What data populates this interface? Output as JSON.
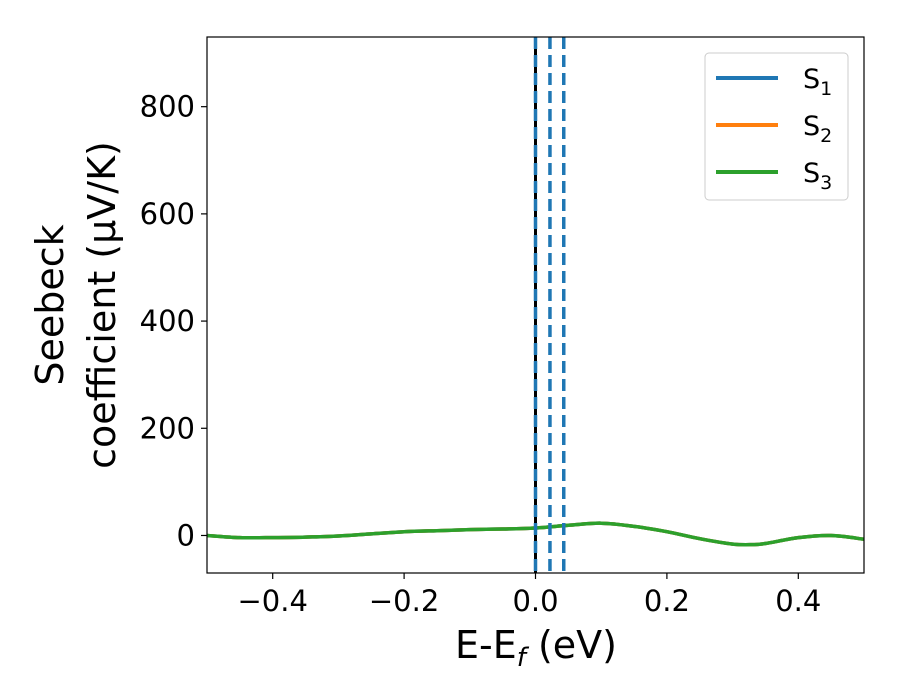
{
  "chart_data": {
    "type": "line",
    "xlabel": {
      "main": "E-E",
      "sub": "f",
      "unit": " (eV)"
    },
    "ylabel": {
      "line1": "Seebeck",
      "line2": "coefficient  (μV/K)"
    },
    "xlim": [
      -0.5,
      0.5
    ],
    "ylim": [
      -70,
      930
    ],
    "xticks": [
      -0.4,
      -0.2,
      0.0,
      0.2,
      0.4
    ],
    "xtick_labels": [
      "−0.4",
      "−0.2",
      "0.0",
      "0.2",
      "0.4"
    ],
    "yticks": [
      0,
      200,
      400,
      600,
      800
    ],
    "ytick_labels": [
      "0",
      "200",
      "400",
      "600",
      "800"
    ],
    "grid": false,
    "legend_position": "top-right",
    "legend": [
      {
        "main": "S",
        "sub": "1",
        "color": "#1f77b4"
      },
      {
        "main": "S",
        "sub": "2",
        "color": "#ff7f0e"
      },
      {
        "main": "S",
        "sub": "3",
        "color": "#2ca02c"
      }
    ],
    "vertical_lines": [
      {
        "x": 0.0,
        "color": "#000000",
        "style": "solid"
      },
      {
        "x": 0.0,
        "color": "#1f77b4",
        "style": "dashed"
      },
      {
        "x": 0.022,
        "color": "#1f77b4",
        "style": "dashed"
      },
      {
        "x": 0.043,
        "color": "#1f77b4",
        "style": "dashed"
      }
    ],
    "series": [
      {
        "name": "S1",
        "color": "#1f77b4",
        "x": [
          -0.5,
          -0.45,
          -0.4,
          -0.35,
          -0.3,
          -0.25,
          -0.2,
          -0.15,
          -0.1,
          -0.05,
          0.0,
          0.05,
          0.1,
          0.15,
          0.2,
          0.25,
          0.3,
          0.33,
          0.35,
          0.4,
          0.45,
          0.5
        ],
        "y": [
          0,
          -4,
          -4,
          -3,
          -1,
          3,
          7,
          9,
          11,
          12,
          14,
          19,
          23,
          17,
          7,
          -6,
          -16,
          -17,
          -15,
          -4,
          0,
          -7
        ]
      },
      {
        "name": "S2",
        "color": "#ff7f0e",
        "x": [
          -0.5,
          -0.45,
          -0.4,
          -0.35,
          -0.3,
          -0.25,
          -0.2,
          -0.15,
          -0.1,
          -0.05,
          0.0,
          0.05,
          0.1,
          0.15,
          0.2,
          0.25,
          0.3,
          0.33,
          0.35,
          0.4,
          0.45,
          0.5
        ],
        "y": [
          0,
          -4,
          -4,
          -3,
          -1,
          3,
          7,
          9,
          11,
          12,
          14,
          19,
          23,
          17,
          7,
          -6,
          -16,
          -17,
          -15,
          -4,
          0,
          -7
        ]
      },
      {
        "name": "S3",
        "color": "#2ca02c",
        "x": [
          -0.5,
          -0.45,
          -0.4,
          -0.35,
          -0.3,
          -0.25,
          -0.2,
          -0.15,
          -0.1,
          -0.05,
          0.0,
          0.05,
          0.1,
          0.15,
          0.2,
          0.25,
          0.3,
          0.33,
          0.35,
          0.4,
          0.45,
          0.5
        ],
        "y": [
          0,
          -4,
          -4,
          -3,
          -1,
          3,
          7,
          9,
          11,
          12,
          14,
          19,
          23,
          17,
          7,
          -6,
          -16,
          -17,
          -15,
          -4,
          0,
          -7
        ]
      }
    ]
  }
}
